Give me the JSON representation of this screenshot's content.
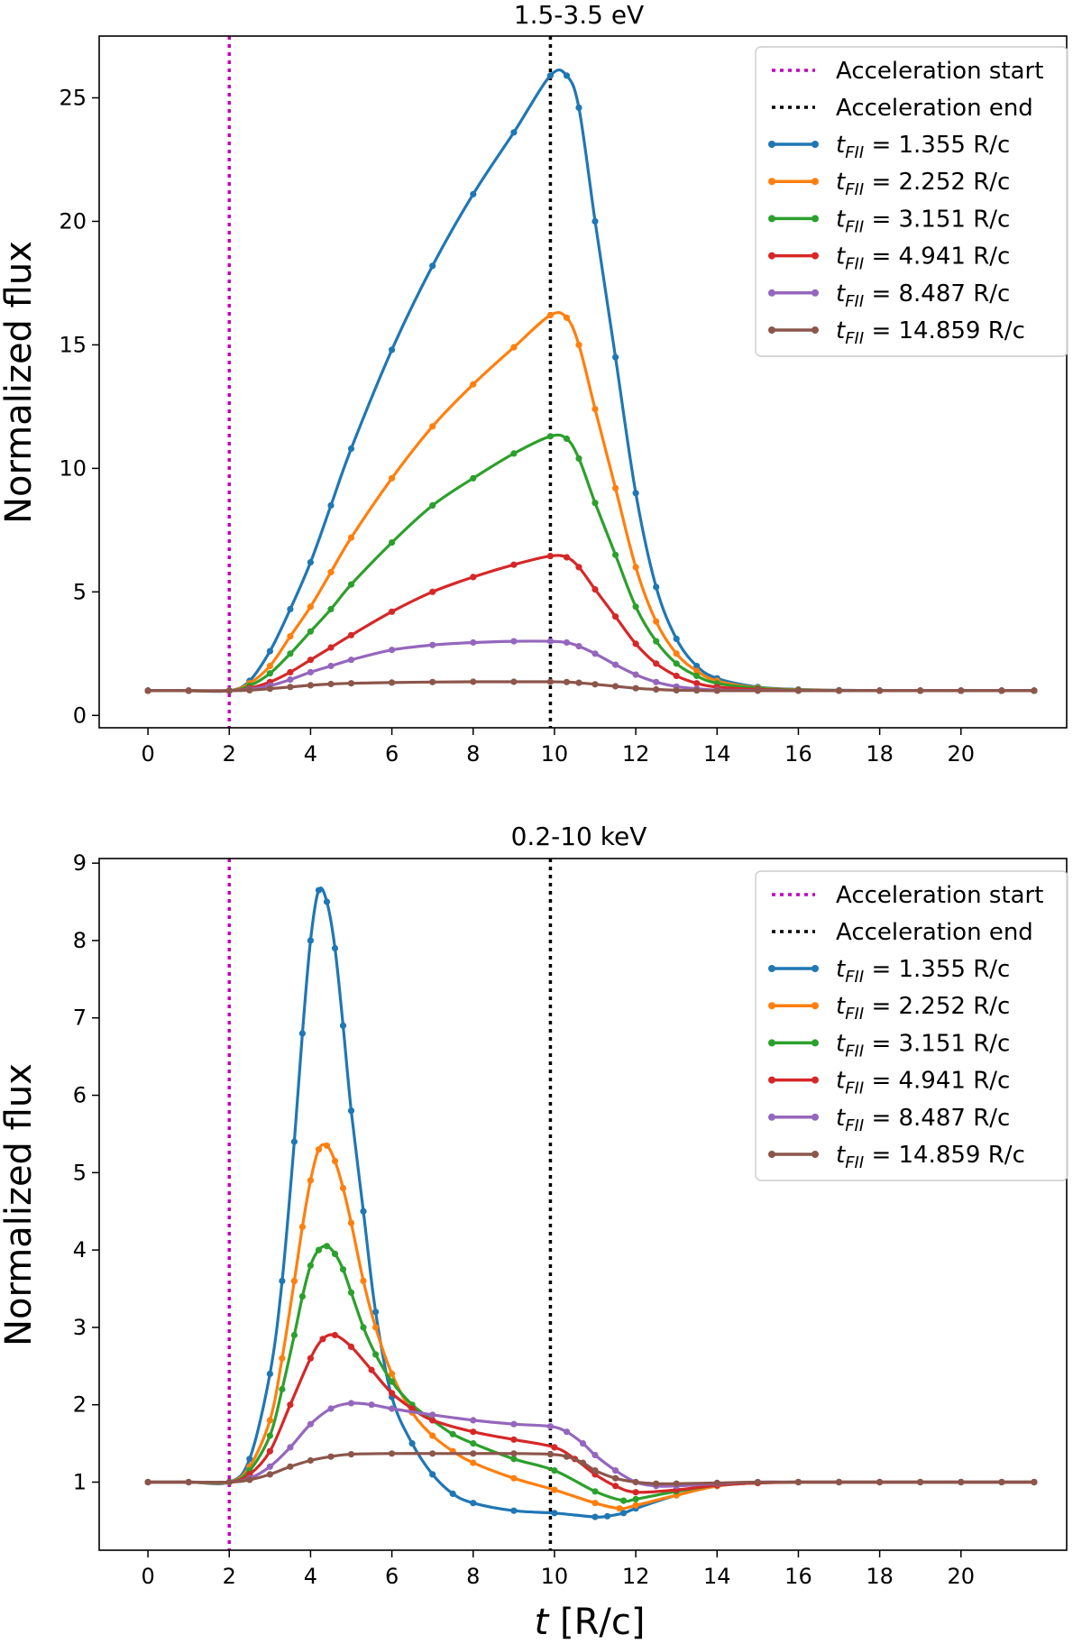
{
  "chart_data": [
    {
      "type": "line",
      "title": "1.5-3.5 eV",
      "xlabel": "",
      "ylabel": "Normalized flux",
      "xlim": [
        -1.2,
        22.6
      ],
      "ylim": [
        -0.5,
        27.5
      ],
      "xticks": [
        0,
        2,
        4,
        6,
        8,
        10,
        12,
        14,
        16,
        18,
        20
      ],
      "xtick_labels": [
        "0",
        "2",
        "4",
        "6",
        "8",
        "10",
        "12",
        "14",
        "16",
        "18",
        "20"
      ],
      "yticks": [
        0,
        5,
        10,
        15,
        20,
        25
      ],
      "ytick_labels": [
        "0",
        "5",
        "10",
        "15",
        "20",
        "25"
      ],
      "vlines": [
        {
          "name": "Acceleration start",
          "x": 2.0,
          "color": "#bf00bf",
          "style": "dotted"
        },
        {
          "name": "Acceleration end",
          "x": 9.9,
          "color": "#000000",
          "style": "dotted"
        }
      ],
      "series": [
        {
          "legend": "t_FII = 1.355 R/c",
          "color": "#1f77b4",
          "x": [
            0,
            1,
            2,
            2.5,
            3,
            3.5,
            4,
            4.5,
            5,
            6,
            7,
            8,
            9,
            9.9,
            10.3,
            10.6,
            11,
            11.5,
            12,
            12.5,
            13,
            13.5,
            14,
            15,
            16,
            17,
            18,
            19,
            20,
            21,
            21.8
          ],
          "values": [
            1,
            1,
            1,
            1.4,
            2.6,
            4.3,
            6.2,
            8.5,
            10.8,
            14.8,
            18.2,
            21.1,
            23.6,
            25.9,
            25.9,
            24.6,
            20.0,
            14.5,
            9.0,
            5.2,
            3.1,
            2.0,
            1.5,
            1.15,
            1.05,
            1.02,
            1.0,
            1.0,
            1.0,
            1.0,
            1.0
          ]
        },
        {
          "legend": "t_FII = 2.252 R/c",
          "color": "#ff7f0e",
          "x": [
            0,
            1,
            2,
            2.5,
            3,
            3.5,
            4,
            4.5,
            5,
            6,
            7,
            8,
            9,
            9.9,
            10.3,
            10.6,
            11,
            11.5,
            12,
            12.5,
            13,
            13.5,
            14,
            15,
            16,
            17,
            18,
            19,
            20,
            21,
            21.8
          ],
          "values": [
            1,
            1,
            1,
            1.3,
            2.0,
            3.2,
            4.4,
            5.8,
            7.2,
            9.6,
            11.7,
            13.4,
            14.9,
            16.2,
            16.1,
            15.0,
            12.4,
            9.2,
            6.0,
            3.8,
            2.5,
            1.8,
            1.4,
            1.12,
            1.04,
            1.01,
            1.0,
            1.0,
            1.0,
            1.0,
            1.0
          ]
        },
        {
          "legend": "t_FII = 3.151 R/c",
          "color": "#2ca02c",
          "x": [
            0,
            1,
            2,
            2.5,
            3,
            3.5,
            4,
            4.5,
            5,
            6,
            7,
            8,
            9,
            9.9,
            10.3,
            10.6,
            11,
            11.5,
            12,
            12.5,
            13,
            13.5,
            14,
            15,
            16,
            17,
            18,
            19,
            20,
            21,
            21.8
          ],
          "values": [
            1,
            1,
            1,
            1.2,
            1.7,
            2.5,
            3.4,
            4.3,
            5.3,
            7.0,
            8.5,
            9.6,
            10.6,
            11.3,
            11.2,
            10.4,
            8.6,
            6.5,
            4.4,
            3.0,
            2.1,
            1.6,
            1.3,
            1.1,
            1.03,
            1.01,
            1.0,
            1.0,
            1.0,
            1.0,
            1.0
          ]
        },
        {
          "legend": "t_FII = 4.941 R/c",
          "color": "#d62728",
          "x": [
            0,
            1,
            2,
            2.5,
            3,
            3.5,
            4,
            4.5,
            5,
            6,
            7,
            8,
            9,
            9.9,
            10.3,
            10.6,
            11,
            11.5,
            12,
            12.5,
            13,
            13.5,
            14,
            15,
            16,
            17,
            18,
            19,
            20,
            21,
            21.8
          ],
          "values": [
            1,
            1,
            1,
            1.1,
            1.35,
            1.75,
            2.25,
            2.75,
            3.25,
            4.2,
            5.0,
            5.6,
            6.1,
            6.45,
            6.4,
            6.0,
            5.1,
            4.0,
            2.9,
            2.1,
            1.6,
            1.3,
            1.15,
            1.05,
            1.01,
            1.0,
            1.0,
            1.0,
            1.0,
            1.0,
            1.0
          ]
        },
        {
          "legend": "t_FII = 8.487 R/c",
          "color": "#9467bd",
          "x": [
            0,
            1,
            2,
            2.5,
            3,
            3.5,
            4,
            4.5,
            5,
            6,
            7,
            8,
            9,
            9.9,
            10.3,
            10.6,
            11,
            11.5,
            12,
            12.5,
            13,
            13.5,
            14,
            15,
            16,
            17,
            18,
            19,
            20,
            21,
            21.8
          ],
          "values": [
            1,
            1,
            1,
            1.05,
            1.2,
            1.45,
            1.75,
            2.0,
            2.25,
            2.65,
            2.85,
            2.95,
            3.0,
            3.0,
            2.95,
            2.8,
            2.5,
            2.05,
            1.65,
            1.35,
            1.17,
            1.08,
            1.03,
            1.01,
            1.0,
            1.0,
            1.0,
            1.0,
            1.0,
            1.0,
            1.0
          ]
        },
        {
          "legend": "t_FII = 14.859 R/c",
          "color": "#8c564b",
          "x": [
            0,
            1,
            2,
            2.5,
            3,
            3.5,
            4,
            4.5,
            5,
            6,
            7,
            8,
            9,
            9.9,
            10.3,
            10.6,
            11,
            11.5,
            12,
            12.5,
            13,
            13.5,
            14,
            15,
            16,
            17,
            18,
            19,
            20,
            21,
            21.8
          ],
          "values": [
            1,
            1,
            1,
            1.02,
            1.08,
            1.15,
            1.22,
            1.27,
            1.3,
            1.33,
            1.35,
            1.36,
            1.36,
            1.36,
            1.35,
            1.32,
            1.26,
            1.18,
            1.1,
            1.05,
            1.02,
            1.01,
            1.0,
            1.0,
            1.0,
            1.0,
            1.0,
            1.0,
            1.0,
            1.0,
            1.0
          ]
        }
      ]
    },
    {
      "type": "line",
      "title": "0.2-10 keV",
      "xlabel": "t [R/c]",
      "ylabel": "Normalized flux",
      "xlim": [
        -1.2,
        22.6
      ],
      "ylim": [
        0.12,
        9.06
      ],
      "xticks": [
        0,
        2,
        4,
        6,
        8,
        10,
        12,
        14,
        16,
        18,
        20
      ],
      "xtick_labels": [
        "0",
        "2",
        "4",
        "6",
        "8",
        "10",
        "12",
        "14",
        "16",
        "18",
        "20"
      ],
      "yticks": [
        1,
        2,
        3,
        4,
        5,
        6,
        7,
        8,
        9
      ],
      "ytick_labels": [
        "1",
        "2",
        "3",
        "4",
        "5",
        "6",
        "7",
        "8",
        "9"
      ],
      "vlines": [
        {
          "name": "Acceleration start",
          "x": 2.0,
          "color": "#bf00bf",
          "style": "dotted"
        },
        {
          "name": "Acceleration end",
          "x": 9.9,
          "color": "#000000",
          "style": "dotted"
        }
      ],
      "series": [
        {
          "legend": "t_FII = 1.355 R/c",
          "color": "#1f77b4",
          "x": [
            0,
            1,
            2,
            2.5,
            3,
            3.3,
            3.6,
            3.8,
            4.0,
            4.2,
            4.4,
            4.6,
            4.8,
            5.0,
            5.3,
            5.6,
            6.0,
            6.5,
            7,
            7.5,
            8,
            9,
            10,
            11,
            11.3,
            11.7,
            12,
            13,
            14,
            15,
            16,
            17,
            18,
            19,
            20,
            21,
            21.8
          ],
          "values": [
            1,
            1,
            1,
            1.3,
            2.4,
            3.6,
            5.4,
            6.8,
            8.0,
            8.65,
            8.5,
            7.9,
            6.9,
            5.8,
            4.5,
            3.2,
            2.1,
            1.5,
            1.1,
            0.85,
            0.73,
            0.63,
            0.6,
            0.55,
            0.56,
            0.6,
            0.66,
            0.83,
            0.95,
            0.99,
            1.0,
            1.0,
            1.0,
            1.0,
            1.0,
            1.0,
            1.0
          ]
        },
        {
          "legend": "t_FII = 2.252 R/c",
          "color": "#ff7f0e",
          "x": [
            0,
            1,
            2,
            2.5,
            3,
            3.3,
            3.6,
            3.8,
            4.0,
            4.2,
            4.4,
            4.6,
            4.8,
            5.0,
            5.3,
            5.6,
            6.0,
            6.5,
            7,
            7.5,
            8,
            9,
            10,
            11,
            11.6,
            12,
            13,
            14,
            15,
            16,
            17,
            18,
            19,
            20,
            21,
            21.8
          ],
          "values": [
            1,
            1,
            1,
            1.2,
            1.8,
            2.6,
            3.6,
            4.3,
            4.9,
            5.3,
            5.35,
            5.15,
            4.8,
            4.35,
            3.6,
            3.0,
            2.4,
            1.9,
            1.6,
            1.4,
            1.25,
            1.05,
            0.9,
            0.73,
            0.66,
            0.7,
            0.83,
            0.95,
            0.99,
            1.0,
            1.0,
            1.0,
            1.0,
            1.0,
            1.0,
            1.0
          ]
        },
        {
          "legend": "t_FII = 3.151 R/c",
          "color": "#2ca02c",
          "x": [
            0,
            1,
            2,
            2.5,
            3,
            3.3,
            3.6,
            3.8,
            4.0,
            4.2,
            4.4,
            4.6,
            4.8,
            5.0,
            5.3,
            5.6,
            6.0,
            6.5,
            7,
            7.5,
            8,
            9,
            10,
            11,
            11.7,
            12,
            13,
            14,
            15,
            16,
            17,
            18,
            19,
            20,
            21,
            21.8
          ],
          "values": [
            1,
            1,
            1,
            1.15,
            1.6,
            2.2,
            2.9,
            3.4,
            3.8,
            4.0,
            4.05,
            3.95,
            3.75,
            3.45,
            3.0,
            2.65,
            2.3,
            2.0,
            1.8,
            1.62,
            1.5,
            1.3,
            1.15,
            0.88,
            0.76,
            0.78,
            0.88,
            0.96,
            0.99,
            1.0,
            1.0,
            1.0,
            1.0,
            1.0,
            1.0,
            1.0
          ]
        },
        {
          "legend": "t_FII = 4.941 R/c",
          "color": "#d62728",
          "x": [
            0,
            1,
            2,
            2.5,
            3,
            3.5,
            4.0,
            4.3,
            4.6,
            5.0,
            5.5,
            6.0,
            6.5,
            7,
            8,
            9,
            10,
            10.5,
            11,
            11.5,
            12,
            13,
            14,
            15,
            16,
            17,
            18,
            19,
            20,
            21,
            21.8
          ],
          "values": [
            1,
            1,
            1,
            1.1,
            1.4,
            2.0,
            2.6,
            2.85,
            2.9,
            2.75,
            2.45,
            2.15,
            1.95,
            1.8,
            1.65,
            1.55,
            1.45,
            1.3,
            1.1,
            0.95,
            0.87,
            0.9,
            0.96,
            0.99,
            1.0,
            1.0,
            1.0,
            1.0,
            1.0,
            1.0,
            1.0
          ]
        },
        {
          "legend": "t_FII = 8.487 R/c",
          "color": "#9467bd",
          "x": [
            0,
            1,
            2,
            2.5,
            3,
            3.5,
            4,
            4.5,
            5,
            5.5,
            6,
            7,
            8,
            9,
            9.9,
            10.3,
            10.7,
            11,
            11.5,
            12,
            12.5,
            13,
            14,
            15,
            16,
            17,
            18,
            19,
            20,
            21,
            21.8
          ],
          "values": [
            1,
            1,
            1,
            1.05,
            1.2,
            1.45,
            1.75,
            1.95,
            2.02,
            2.0,
            1.95,
            1.87,
            1.8,
            1.75,
            1.72,
            1.65,
            1.5,
            1.35,
            1.15,
            1.0,
            0.95,
            0.95,
            0.98,
            1.0,
            1.0,
            1.0,
            1.0,
            1.0,
            1.0,
            1.0,
            1.0
          ]
        },
        {
          "legend": "t_FII = 14.859 R/c",
          "color": "#8c564b",
          "x": [
            0,
            1,
            2,
            2.5,
            3,
            3.5,
            4,
            4.5,
            5,
            6,
            7,
            8,
            9,
            9.9,
            10.3,
            10.7,
            11,
            11.5,
            12,
            12.5,
            13,
            14,
            15,
            16,
            17,
            18,
            19,
            20,
            21,
            21.8
          ],
          "values": [
            1,
            1,
            1,
            1.03,
            1.1,
            1.2,
            1.28,
            1.33,
            1.36,
            1.37,
            1.37,
            1.37,
            1.37,
            1.36,
            1.33,
            1.25,
            1.15,
            1.05,
            1.0,
            0.98,
            0.98,
            0.99,
            1.0,
            1.0,
            1.0,
            1.0,
            1.0,
            1.0,
            1.0,
            1.0
          ]
        }
      ]
    }
  ],
  "legend": {
    "acc_start": "Acceleration start",
    "acc_end": "Acceleration end",
    "t_sym": "t",
    "sub_sym": "FII",
    "entries": [
      "= 1.355 R/c",
      "= 2.252 R/c",
      "= 3.151 R/c",
      "= 4.941 R/c",
      "= 8.487 R/c",
      "= 14.859 R/c"
    ]
  },
  "xlabel_bottom": {
    "t": "t",
    "rest": " [R/c]"
  }
}
